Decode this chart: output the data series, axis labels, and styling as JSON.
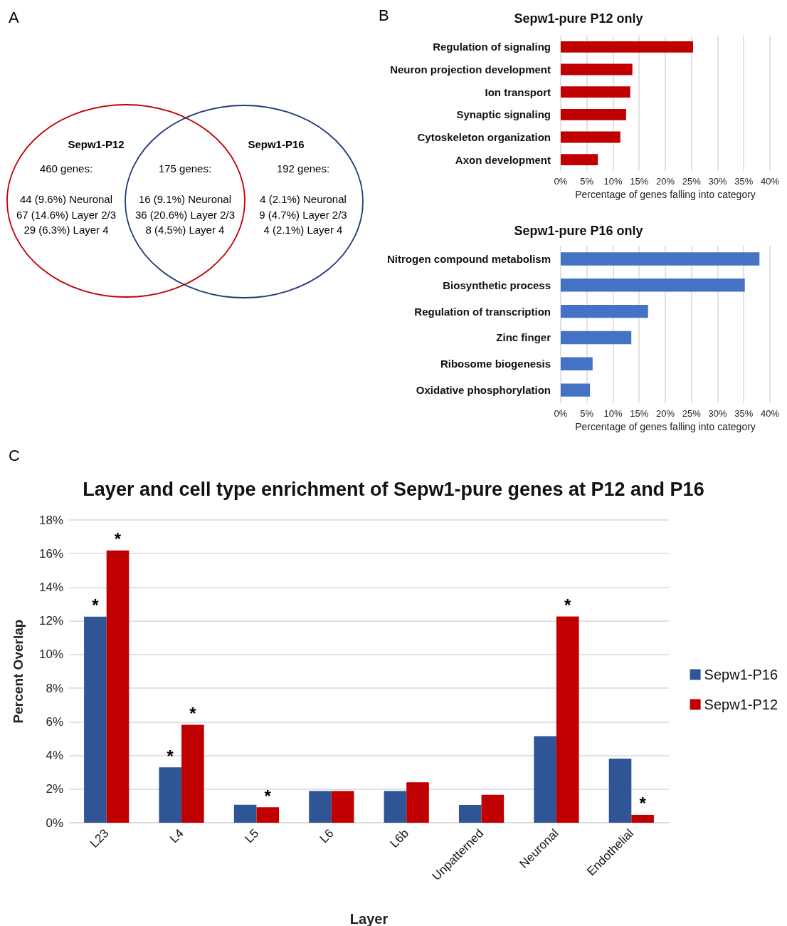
{
  "chart_data": [
    {
      "type": "other",
      "colors": [
        "#c00000",
        "#1f3a78"
      ],
      "annotations": [
        "A",
        "Sepw1-P12",
        "Sepw1-P16",
        "460 genes:\n\n44 (9.6%) Neuronal\n67 (14.6%) Layer 2/3\n29 (6.3%) Layer 4",
        "175 genes:\n\n16 (9.1%) Neuronal\n36 (20.6%) Layer 2/3\n8 (4.5%) Layer 4",
        "192 genes:\n\n4 (2.1%) Neuronal\n9 (4.7%) Layer 2/3\n4 (2.1%) Layer 4"
      ],
      "categories": [
        null,
        null
      ]
    },
    {
      "type": "bar",
      "orientation": "horizontal",
      "title": "Sepw1-pure P12 only",
      "xlabel": "Percentage of genes falling into category",
      "annotations": [
        "B"
      ],
      "categories": [
        "Regulation of signaling",
        "Neuron projection development",
        "Ion transport",
        "Synaptic signaling",
        "Cytoskeleton organization",
        "Axon development"
      ],
      "values": [
        25.3,
        13.7,
        13.3,
        12.5,
        11.4,
        7.1
      ],
      "color": "#c00000",
      "xlim": [
        0,
        40
      ],
      "xticks": [
        {
          "value": 0,
          "label": "0%"
        },
        {
          "value": 5,
          "label": "5%"
        },
        {
          "value": 10,
          "label": "10%"
        },
        {
          "value": 15,
          "label": "15%"
        },
        {
          "value": 20,
          "label": "20%"
        },
        {
          "value": 25,
          "label": "25%"
        },
        {
          "value": 30,
          "label": "30%"
        },
        {
          "value": 35,
          "label": "35%"
        },
        {
          "value": 40,
          "label": "40%"
        }
      ],
      "grid": "x"
    },
    {
      "type": "bar",
      "orientation": "horizontal",
      "title": "Sepw1-pure P16 only",
      "xlabel": "Percentage of genes falling into category",
      "categories": [
        "Nitrogen compound metabolism",
        "Biosynthetic process",
        "Regulation of transcription",
        "Zinc finger",
        "Ribosome biogenesis",
        "Oxidative phosphorylation"
      ],
      "values": [
        38,
        35.2,
        16.7,
        13.5,
        6.1,
        5.6
      ],
      "color": "#4472c4",
      "xlim": [
        0,
        40
      ],
      "xticks": [
        {
          "value": 0,
          "label": "0%"
        },
        {
          "value": 5,
          "label": "5%"
        },
        {
          "value": 10,
          "label": "10%"
        },
        {
          "value": 15,
          "label": "15%"
        },
        {
          "value": 20,
          "label": "20%"
        },
        {
          "value": 25,
          "label": "25%"
        },
        {
          "value": 30,
          "label": "30%"
        },
        {
          "value": 35,
          "label": "35%"
        },
        {
          "value": 40,
          "label": "40%"
        }
      ],
      "grid": "x"
    },
    {
      "type": "bar",
      "title": "Layer and cell type enrichment of Sepw1-pure genes at P12 and P16",
      "xlabel": "Layer",
      "ylabel": "Percent Overlap",
      "categories": [
        "L23",
        "L4",
        "L5",
        "L6",
        "L6b",
        "Unpatterned",
        "Neuronal",
        "Endothelial"
      ],
      "series": [
        {
          "name": "Sepw1-P16",
          "color": "#2f5597",
          "values": [
            12.25,
            3.29,
            1.07,
            1.89,
            1.89,
            1.06,
            5.15,
            3.81
          ]
        },
        {
          "name": "Sepw1-P12",
          "color": "#c00000",
          "values": [
            16.19,
            5.82,
            0.92,
            1.89,
            2.4,
            1.66,
            12.26,
            0.47
          ]
        }
      ],
      "ylim": [
        0,
        18
      ],
      "yticks": [
        {
          "value": 0,
          "label": "0%"
        },
        {
          "value": 2,
          "label": "2%"
        },
        {
          "value": 4,
          "label": "4%"
        },
        {
          "value": 6,
          "label": "6%"
        },
        {
          "value": 8,
          "label": "8%"
        },
        {
          "value": 10,
          "label": "10%"
        },
        {
          "value": 12,
          "label": "12%"
        },
        {
          "value": 14,
          "label": "14%"
        },
        {
          "value": 16,
          "label": "16%"
        },
        {
          "value": 18,
          "label": "18%"
        }
      ],
      "grid": "y",
      "legend": "right",
      "annotations": [
        "C",
        {
          "text": "*",
          "x": "L23",
          "y": 12.25
        },
        {
          "text": "*",
          "x": "L23",
          "y": 16.19
        },
        {
          "text": "*",
          "x": "L4",
          "y": 3.29
        },
        {
          "text": "*",
          "x": "L4",
          "y": 5.82
        },
        {
          "text": "*",
          "x": "L5",
          "y": 0.92
        },
        {
          "text": "*",
          "x": "Neuronal",
          "y": 12.26
        },
        {
          "text": "*",
          "x": "Endothelial",
          "y": 0.47
        }
      ]
    }
  ]
}
